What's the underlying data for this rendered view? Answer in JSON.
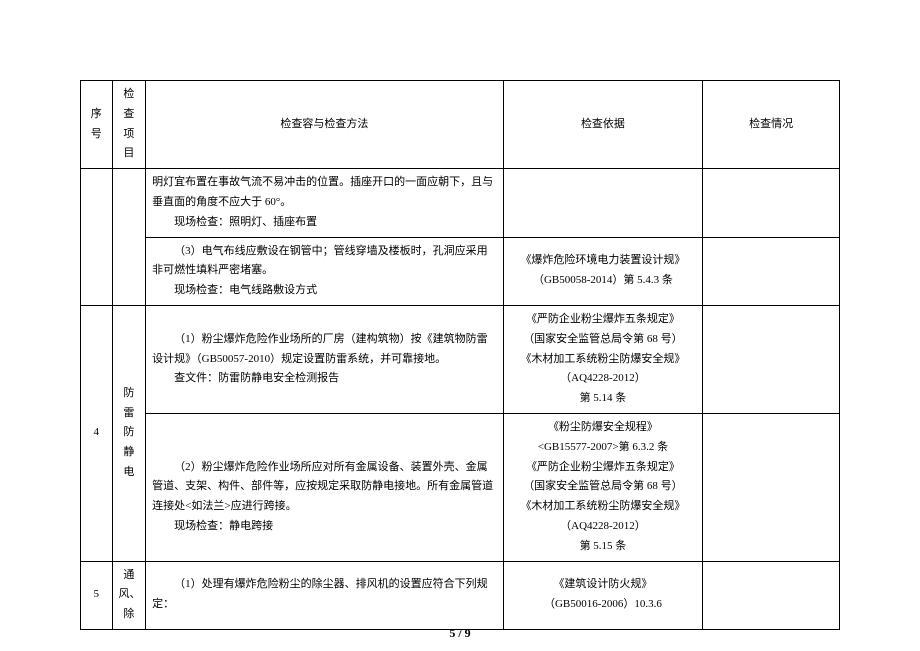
{
  "header": {
    "seq": "序号",
    "item": "检查项目",
    "content": "检查容与检查方法",
    "basis": "检查依据",
    "status": "检查情况"
  },
  "rows": {
    "r1": {
      "content_l1": "明灯宜布置在事故气流不易冲击的位置。插座开口的一面应朝下，且与垂直面的角度不应大于 60°。",
      "content_l2": "现场检查：照明灯、插座布置"
    },
    "r2": {
      "content_l1": "（3）电气布线应敷设在钢管中；管线穿墙及楼板时，孔洞应采用非可燃性填料严密堵塞。",
      "content_l2": "现场检查：电气线路敷设方式",
      "basis_l1": "《爆炸危险环境电力装置设计规》",
      "basis_l2": "（GB50058-2014）第 5.4.3 条"
    },
    "r3": {
      "seq": "4",
      "item": "防雷防静电",
      "content_a_l1": "（1）粉尘爆炸危险作业场所的厂房（建构筑物）按《建筑物防雷设计规》（GB50057-2010）规定设置防雷系统，并可靠接地。",
      "content_a_l2": "查文件：防雷防静电安全检测报告",
      "basis_a_l1": "《严防企业粉尘爆炸五条规定》",
      "basis_a_l2": "（国家安全监管总局令第 68 号）",
      "basis_a_l3": "《木材加工系统粉尘防爆安全规》",
      "basis_a_l4": "（AQ4228-2012）",
      "basis_a_l5": "第 5.14 条",
      "content_b_l1": "（2）粉尘爆炸危险作业场所应对所有金属设备、装置外壳、金属管道、支架、构件、部件等，应按规定采取防静电接地。所有金属管道连接处<如法兰>应进行跨接。",
      "content_b_l2": "现场检查：静电跨接",
      "basis_b_l1": "《粉尘防爆安全规程》",
      "basis_b_l2": "<GB15577-2007>第 6.3.2 条",
      "basis_b_l3": "《严防企业粉尘爆炸五条规定》",
      "basis_b_l4": "（国家安全监管总局令第 68 号）",
      "basis_b_l5": "《木材加工系统粉尘防爆安全规》",
      "basis_b_l6": "（AQ4228-2012）",
      "basis_b_l7": "第 5.15 条"
    },
    "r4": {
      "seq": "5",
      "item": "通风、除",
      "content_l1": "（1）处理有爆炸危险粉尘的除尘器、排风机的设置应符合下列规定：",
      "basis_l1": "《建筑设计防火规》",
      "basis_l2": "（GB50016-2006）10.3.6"
    }
  },
  "footer": "5 / 9"
}
